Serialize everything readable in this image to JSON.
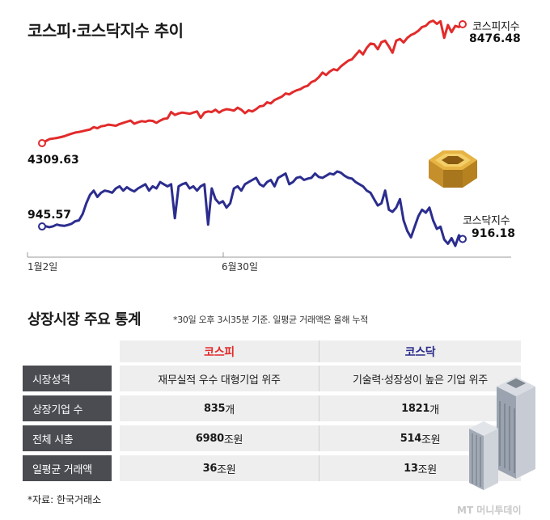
{
  "title": "코스피·코스닥지수 추이",
  "chart_data": {
    "type": "line",
    "x_ticks": [
      "1월2일",
      "6월30일"
    ],
    "series": [
      {
        "name": "코스피지수",
        "color": "#e22b2b",
        "start_value": "4309.63",
        "end_value": "8476.48",
        "values": [
          4309.63,
          4380,
          4450,
          4470,
          4490,
          4520,
          4550,
          4600,
          4640,
          4680,
          4700,
          4730,
          4760,
          4790,
          4870,
          4830,
          4900,
          4920,
          4960,
          4940,
          4920,
          4980,
          5020,
          5060,
          5100,
          4990,
          5040,
          5080,
          5060,
          5100,
          5090,
          5020,
          5100,
          5160,
          5180,
          5400,
          5300,
          5350,
          5380,
          5360,
          5340,
          5380,
          5420,
          5200,
          5380,
          5420,
          5400,
          5480,
          5380,
          5460,
          5500,
          5480,
          5450,
          5550,
          5480,
          5360,
          5460,
          5420,
          5500,
          5600,
          5620,
          5740,
          5700,
          5820,
          5880,
          5940,
          6050,
          6020,
          6100,
          6160,
          6200,
          6280,
          6320,
          6450,
          6500,
          6620,
          6780,
          6700,
          6820,
          6900,
          6860,
          7000,
          7100,
          7200,
          7250,
          7400,
          7550,
          7420,
          7650,
          7800,
          7780,
          7600,
          7850,
          7900,
          7700,
          7480,
          7900,
          7960,
          7840,
          8000,
          8100,
          8160,
          8250,
          8380,
          8420,
          8550,
          8600,
          8490,
          8580,
          8000,
          8450,
          8200,
          8420,
          8380,
          8476.48
        ]
      },
      {
        "name": "코스닥지수",
        "color": "#2b2d8e",
        "start_value": "945.57",
        "end_value": "916.18",
        "values": [
          945.57,
          946,
          944,
          946,
          950,
          948,
          947,
          949,
          952,
          958,
          960,
          975,
          1000,
          1020,
          1030,
          1015,
          1025,
          1030,
          1028,
          1025,
          1035,
          1040,
          1030,
          1038,
          1032,
          1028,
          1035,
          1040,
          1045,
          1030,
          1040,
          1035,
          1050,
          1045,
          1040,
          1045,
          965,
          1040,
          1045,
          1048,
          1035,
          1040,
          1030,
          1040,
          1045,
          950,
          1035,
          1010,
          1000,
          1005,
          990,
          1000,
          1035,
          1040,
          1030,
          1045,
          1050,
          1055,
          1060,
          1045,
          1040,
          1050,
          1055,
          1040,
          1060,
          1065,
          1070,
          1045,
          1050,
          1060,
          1062,
          1055,
          1058,
          1060,
          1070,
          1062,
          1060,
          1065,
          1070,
          1068,
          1075,
          1072,
          1065,
          1060,
          1058,
          1050,
          1045,
          1040,
          1030,
          1025,
          1010,
          995,
          1000,
          1030,
          985,
          980,
          990,
          1010,
          960,
          935,
          920,
          945,
          970,
          985,
          978,
          990,
          960,
          940,
          945,
          915,
          905,
          918,
          900,
          925,
          916.18
        ]
      }
    ]
  },
  "stats": {
    "title": "상장시장 주요 통계",
    "note": "*30일 오후 3시35분 기준. 일평균 거래액은 올해 누적",
    "headers": [
      "코스피",
      "코스닥"
    ],
    "rows": [
      {
        "label": "시장성격",
        "kospi": "재무실적 우수 대형기업 위주",
        "kosdaq": "기술력·성장성이 높은 기업 위주"
      },
      {
        "label": "상장기업 수",
        "kospi_num": "835",
        "kospi_unit": "개",
        "kosdaq_num": "1821",
        "kosdaq_unit": "개"
      },
      {
        "label": "전체 시총",
        "kospi_num": "6980",
        "kospi_unit": "조원",
        "kosdaq_num": "514",
        "kosdaq_unit": "조원"
      },
      {
        "label": "일평균 거래액",
        "kospi_num": "36",
        "kospi_unit": "조원",
        "kosdaq_num": "13",
        "kosdaq_unit": "조원"
      }
    ]
  },
  "source": "*자료: 한국거래소",
  "watermark": "MT 머니투데이"
}
